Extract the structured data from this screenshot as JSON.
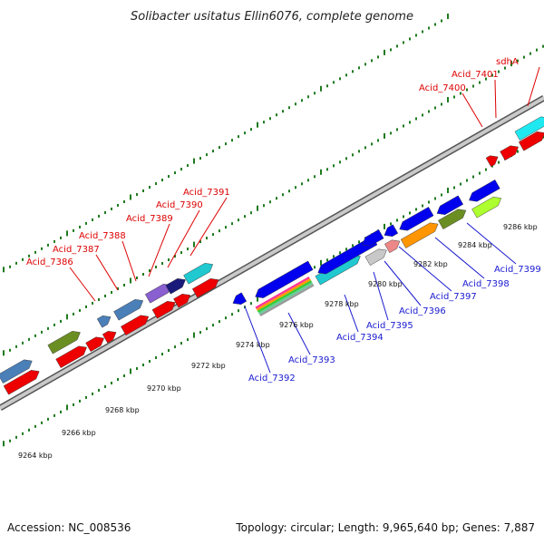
{
  "title": "Solibacter usitatus Ellin6076, complete genome",
  "footer": {
    "accession": "Accession: NC_008536",
    "summary": "Topology: circular; Length: 9,965,640 bp; Genes: 7,887"
  },
  "colors": {
    "backbone": "#9a9a9a",
    "backbone_edge": "#555555",
    "tick": "#1f7a1f",
    "red_label": "#dd0000",
    "blue_label": "#1a1ad0"
  },
  "scale": {
    "ticks": [
      "9264 kbp",
      "9266 kbp",
      "9268 kbp",
      "9270 kbp",
      "9272 kbp",
      "9274 kbp",
      "9276 kbp",
      "9278 kbp",
      "9280 kbp",
      "9282 kbp",
      "9284 kbp",
      "9286 kbp"
    ]
  },
  "labels_forward": [
    "Acid_7386",
    "Acid_7387",
    "Acid_7388",
    "Acid_7389",
    "Acid_7390",
    "Acid_7391",
    "Acid_7400",
    "Acid_7401",
    "sdhA"
  ],
  "labels_reverse": [
    "Acid_7392",
    "Acid_7393",
    "Acid_7394",
    "Acid_7395",
    "Acid_7396",
    "Acid_7397",
    "Acid_7398",
    "Acid_7399"
  ]
}
